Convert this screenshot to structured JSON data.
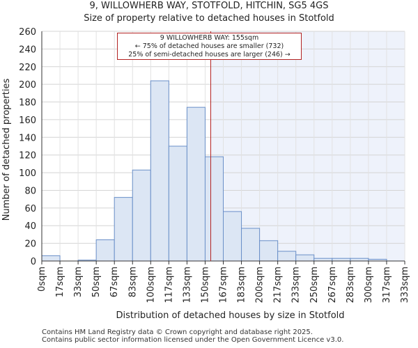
{
  "title_line1": "9, WILLOWHERB WAY, STOTFOLD, HITCHIN, SG5 4GS",
  "title_line2": "Size of property relative to detached houses in Stotfold",
  "annotation": {
    "line1": "9 WILLOWHERB WAY: 155sqm",
    "line2": "← 75% of detached houses are smaller (732)",
    "line3": "25% of semi-detached houses are larger (246) →"
  },
  "footer": {
    "line1": "Contains HM Land Registry data © Crown copyright and database right 2025.",
    "line2": "Contains public sector information licensed under the Open Government Licence v3.0."
  },
  "chart_data": {
    "type": "bar",
    "title": "Size of property relative to detached houses in Stotfold",
    "xlabel": "Distribution of detached houses by size in Stotfold",
    "ylabel": "Number of detached properties",
    "ylim": [
      0,
      260
    ],
    "yticks": [
      0,
      20,
      40,
      60,
      80,
      100,
      120,
      140,
      160,
      180,
      200,
      220,
      240,
      260
    ],
    "bin_edges": [
      0,
      17,
      33,
      50,
      67,
      83,
      100,
      117,
      133,
      150,
      167,
      183,
      200,
      217,
      233,
      250,
      267,
      283,
      300,
      317,
      333
    ],
    "tick_labels": [
      "0sqm",
      "17sqm",
      "33sqm",
      "50sqm",
      "67sqm",
      "83sqm",
      "100sqm",
      "117sqm",
      "133sqm",
      "150sqm",
      "167sqm",
      "183sqm",
      "200sqm",
      "217sqm",
      "233sqm",
      "250sqm",
      "267sqm",
      "283sqm",
      "300sqm",
      "317sqm",
      "333sqm"
    ],
    "values": [
      6,
      0,
      1,
      24,
      72,
      103,
      204,
      130,
      174,
      118,
      56,
      37,
      23,
      11,
      7,
      3,
      3,
      3,
      2,
      0
    ],
    "marker_value": 155,
    "marker_color": "#b22222",
    "bar_fill": "#dce6f4",
    "bar_stroke": "#6a8fc8",
    "shade_fill": "#eef2fb",
    "grid": true
  }
}
